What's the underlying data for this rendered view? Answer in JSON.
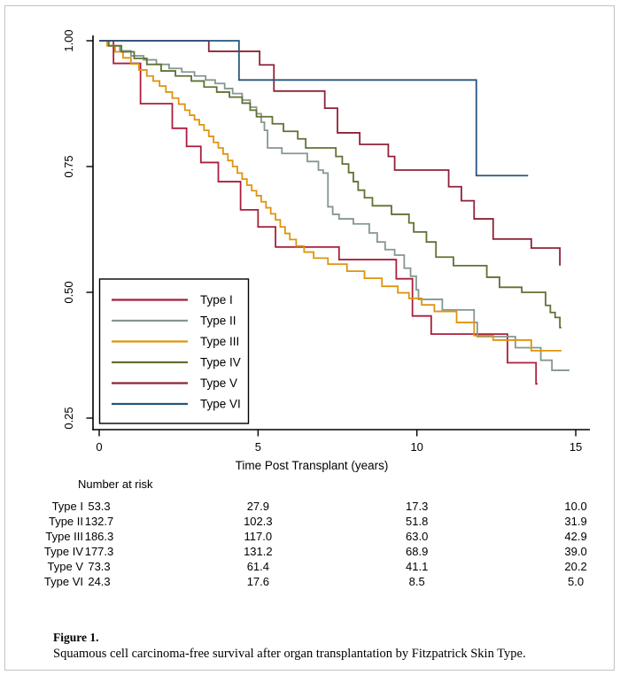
{
  "figure": {
    "caption_label": "Figure 1.",
    "caption_text": "Squamous cell carcinoma-free survival after organ transplantation by Fitzpatrick Skin Type."
  },
  "chart_data": {
    "type": "line",
    "subtype": "kaplan-meier-step-survival",
    "title": "",
    "xlabel": "Time Post Transplant (years)",
    "ylabel": "",
    "xticks": [
      0,
      5,
      10,
      15
    ],
    "xtick_labels": [
      "0",
      "5",
      "10",
      "15"
    ],
    "yticks": [
      1.0,
      0.75,
      0.5,
      0.25
    ],
    "ytick_labels": [
      "1.00",
      "0.75",
      "0.50",
      "0.25"
    ],
    "xlim": [
      0,
      15.5
    ],
    "ylim": [
      0.22,
      1.0
    ],
    "grid": false,
    "legend_position": "inside-lower-left",
    "axis_color": "#000000",
    "series": [
      {
        "name": "Type I",
        "color": "#ab1e3c",
        "end": 13.8,
        "points": [
          [
            0,
            1.0
          ],
          [
            0.45,
            0.955
          ],
          [
            1.3,
            0.875
          ],
          [
            2.3,
            0.826
          ],
          [
            2.75,
            0.79
          ],
          [
            3.2,
            0.758
          ],
          [
            3.75,
            0.72
          ],
          [
            4.45,
            0.664
          ],
          [
            5.0,
            0.63
          ],
          [
            5.55,
            0.59
          ],
          [
            7.55,
            0.565
          ],
          [
            9.35,
            0.527
          ],
          [
            9.86,
            0.453
          ],
          [
            10.45,
            0.417
          ],
          [
            12.85,
            0.36
          ],
          [
            13.75,
            0.318
          ]
        ]
      },
      {
        "name": "Type II",
        "color": "#85978f",
        "end": 14.8,
        "points": [
          [
            0,
            1.0
          ],
          [
            0.3,
            0.99
          ],
          [
            0.65,
            0.98
          ],
          [
            1.0,
            0.97
          ],
          [
            1.4,
            0.962
          ],
          [
            1.8,
            0.953
          ],
          [
            2.2,
            0.945
          ],
          [
            2.6,
            0.938
          ],
          [
            3.0,
            0.93
          ],
          [
            3.35,
            0.922
          ],
          [
            3.65,
            0.915
          ],
          [
            3.95,
            0.905
          ],
          [
            4.2,
            0.895
          ],
          [
            4.5,
            0.882
          ],
          [
            4.75,
            0.868
          ],
          [
            4.95,
            0.855
          ],
          [
            5.1,
            0.838
          ],
          [
            5.2,
            0.822
          ],
          [
            5.3,
            0.787
          ],
          [
            5.75,
            0.776
          ],
          [
            6.55,
            0.76
          ],
          [
            6.9,
            0.743
          ],
          [
            7.05,
            0.737
          ],
          [
            7.2,
            0.67
          ],
          [
            7.35,
            0.655
          ],
          [
            7.55,
            0.646
          ],
          [
            8.0,
            0.636
          ],
          [
            8.5,
            0.618
          ],
          [
            8.75,
            0.6
          ],
          [
            9.0,
            0.585
          ],
          [
            9.3,
            0.574
          ],
          [
            9.6,
            0.548
          ],
          [
            9.8,
            0.532
          ],
          [
            9.98,
            0.505
          ],
          [
            10.05,
            0.486
          ],
          [
            10.8,
            0.465
          ],
          [
            11.8,
            0.44
          ],
          [
            11.9,
            0.412
          ],
          [
            13.1,
            0.39
          ],
          [
            13.9,
            0.365
          ],
          [
            14.25,
            0.345
          ]
        ]
      },
      {
        "name": "Type III",
        "color": "#e0940f",
        "end": 14.55,
        "points": [
          [
            0,
            1.0
          ],
          [
            0.25,
            0.99
          ],
          [
            0.5,
            0.978
          ],
          [
            0.75,
            0.966
          ],
          [
            1.0,
            0.954
          ],
          [
            1.25,
            0.942
          ],
          [
            1.5,
            0.93
          ],
          [
            1.7,
            0.92
          ],
          [
            1.9,
            0.91
          ],
          [
            2.1,
            0.898
          ],
          [
            2.3,
            0.886
          ],
          [
            2.5,
            0.874
          ],
          [
            2.7,
            0.862
          ],
          [
            2.85,
            0.852
          ],
          [
            3.0,
            0.843
          ],
          [
            3.15,
            0.833
          ],
          [
            3.3,
            0.822
          ],
          [
            3.45,
            0.81
          ],
          [
            3.6,
            0.798
          ],
          [
            3.75,
            0.787
          ],
          [
            3.9,
            0.775
          ],
          [
            4.05,
            0.762
          ],
          [
            4.2,
            0.75
          ],
          [
            4.35,
            0.737
          ],
          [
            4.5,
            0.725
          ],
          [
            4.65,
            0.713
          ],
          [
            4.8,
            0.702
          ],
          [
            4.95,
            0.692
          ],
          [
            5.1,
            0.68
          ],
          [
            5.25,
            0.668
          ],
          [
            5.4,
            0.656
          ],
          [
            5.55,
            0.644
          ],
          [
            5.7,
            0.63
          ],
          [
            5.85,
            0.617
          ],
          [
            6.0,
            0.605
          ],
          [
            6.2,
            0.592
          ],
          [
            6.45,
            0.58
          ],
          [
            6.75,
            0.568
          ],
          [
            7.2,
            0.556
          ],
          [
            7.8,
            0.542
          ],
          [
            8.35,
            0.528
          ],
          [
            8.9,
            0.512
          ],
          [
            9.4,
            0.499
          ],
          [
            9.75,
            0.488
          ],
          [
            10.15,
            0.475
          ],
          [
            10.55,
            0.462
          ],
          [
            11.25,
            0.44
          ],
          [
            11.8,
            0.414
          ],
          [
            12.4,
            0.405
          ],
          [
            13.6,
            0.384
          ]
        ]
      },
      {
        "name": "Type IV",
        "color": "#5f7233",
        "end": 14.55,
        "points": [
          [
            0,
            1.0
          ],
          [
            0.3,
            0.99
          ],
          [
            0.7,
            0.978
          ],
          [
            1.1,
            0.965
          ],
          [
            1.5,
            0.953
          ],
          [
            1.95,
            0.94
          ],
          [
            2.4,
            0.93
          ],
          [
            2.9,
            0.92
          ],
          [
            3.3,
            0.908
          ],
          [
            3.7,
            0.898
          ],
          [
            4.1,
            0.888
          ],
          [
            4.5,
            0.876
          ],
          [
            4.75,
            0.862
          ],
          [
            4.95,
            0.849
          ],
          [
            5.45,
            0.835
          ],
          [
            5.8,
            0.82
          ],
          [
            6.25,
            0.805
          ],
          [
            6.5,
            0.787
          ],
          [
            7.45,
            0.77
          ],
          [
            7.65,
            0.755
          ],
          [
            7.85,
            0.738
          ],
          [
            8.0,
            0.72
          ],
          [
            8.15,
            0.703
          ],
          [
            8.35,
            0.688
          ],
          [
            8.6,
            0.672
          ],
          [
            9.2,
            0.655
          ],
          [
            9.75,
            0.638
          ],
          [
            9.9,
            0.62
          ],
          [
            10.3,
            0.6
          ],
          [
            10.6,
            0.57
          ],
          [
            11.15,
            0.553
          ],
          [
            12.2,
            0.53
          ],
          [
            12.6,
            0.51
          ],
          [
            13.3,
            0.5
          ],
          [
            14.05,
            0.474
          ],
          [
            14.2,
            0.46
          ],
          [
            14.35,
            0.45
          ],
          [
            14.5,
            0.43
          ]
        ]
      },
      {
        "name": "Type V",
        "color": "#8d2437",
        "end": 14.5,
        "points": [
          [
            0,
            1.0
          ],
          [
            3.45,
            0.979
          ],
          [
            5.05,
            0.952
          ],
          [
            5.5,
            0.9
          ],
          [
            7.1,
            0.866
          ],
          [
            7.5,
            0.817
          ],
          [
            8.2,
            0.794
          ],
          [
            9.1,
            0.77
          ],
          [
            9.3,
            0.743
          ],
          [
            11.0,
            0.71
          ],
          [
            11.4,
            0.682
          ],
          [
            11.8,
            0.646
          ],
          [
            12.4,
            0.606
          ],
          [
            13.6,
            0.588
          ],
          [
            14.5,
            0.553
          ]
        ]
      },
      {
        "name": "Type VI",
        "color": "#26567c",
        "end": 13.5,
        "points": [
          [
            0,
            1.0
          ],
          [
            4.4,
            0.922
          ],
          [
            11.87,
            0.732
          ]
        ]
      }
    ],
    "number_at_risk": {
      "title": "Number at risk",
      "timepoints": [
        0,
        5,
        10,
        15
      ],
      "rows": [
        {
          "label": "Type I",
          "values": [
            "53.3",
            "27.9",
            "17.3",
            "10.0"
          ]
        },
        {
          "label": "Type II",
          "values": [
            "132.7",
            "102.3",
            "51.8",
            "31.9"
          ]
        },
        {
          "label": "Type III",
          "values": [
            "186.3",
            "117.0",
            "63.0",
            "42.9"
          ]
        },
        {
          "label": "Type IV",
          "values": [
            "177.3",
            "131.2",
            "68.9",
            "39.0"
          ]
        },
        {
          "label": "Type V",
          "values": [
            "73.3",
            "61.4",
            "41.1",
            "20.2"
          ]
        },
        {
          "label": "Type VI",
          "values": [
            "24.3",
            "17.6",
            "8.5",
            "5.0"
          ]
        }
      ]
    }
  }
}
